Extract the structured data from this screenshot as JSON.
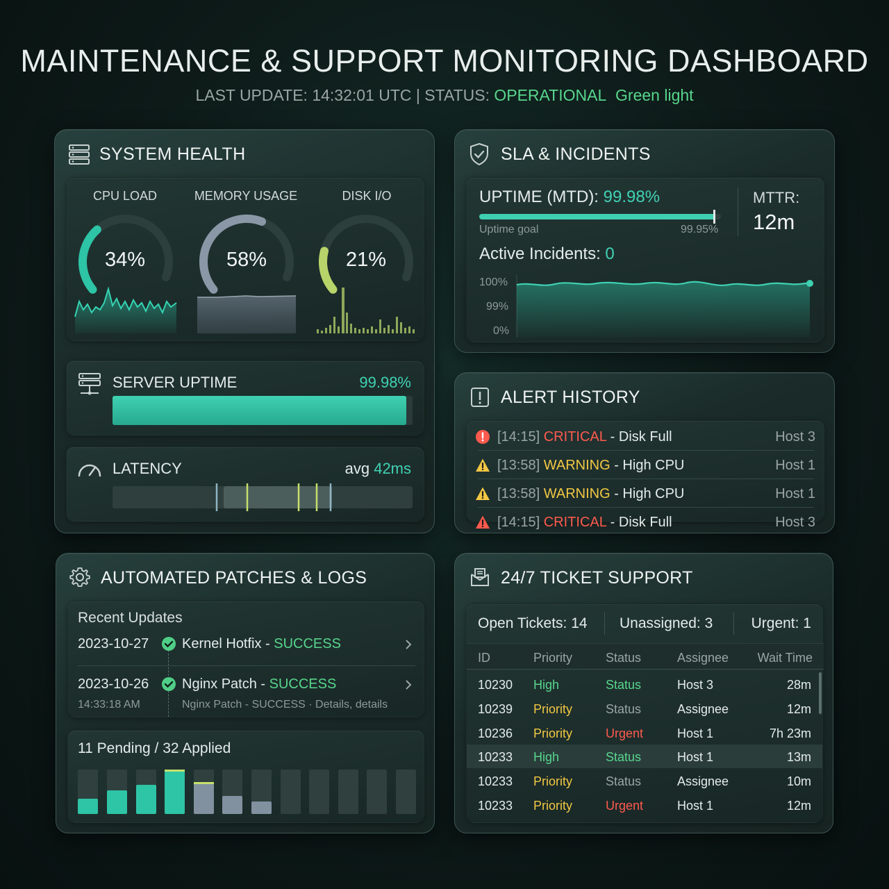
{
  "header": {
    "title": "MAINTENANCE & SUPPORT MONITORING DASHBOARD",
    "last_update_label": "LAST UPDATE: 14:32:01 UTC | STATUS: ",
    "status_value": "OPERATIONAL",
    "status_light": "Green light"
  },
  "system_health": {
    "title": "SYSTEM HEALTH",
    "icon": "server-icon",
    "gauges": [
      {
        "label": "CPU LOAD",
        "value": "34%",
        "fraction": 0.34,
        "color": "#2ec4a6"
      },
      {
        "label": "MEMORY USAGE",
        "value": "58%",
        "fraction": 0.58,
        "color": "#8a97a6"
      },
      {
        "label": "DISK I/O",
        "value": "21%",
        "fraction": 0.21,
        "color": "#b7d46a"
      }
    ],
    "server_uptime": {
      "label": "SERVER UPTIME",
      "value": "99.98%",
      "fraction": 0.9998
    },
    "latency": {
      "label": "LATENCY",
      "avg_label": "avg",
      "avg_value": "42ms"
    }
  },
  "sla": {
    "title": "SLA & INCIDENTS",
    "icon": "shield-check-icon",
    "uptime_label": "UPTIME (MTD): ",
    "uptime_value": "99.98%",
    "goal_label": "Uptime goal",
    "goal_value": "99.95%",
    "mttr_label": "MTTR:",
    "mttr_value": "12m",
    "incidents_label": "Active Incidents: ",
    "incidents_value": "0",
    "chart_ticks": [
      "100%",
      "99%",
      "0%"
    ]
  },
  "alerts": {
    "title": "ALERT HISTORY",
    "icon": "alert-box-icon",
    "items": [
      {
        "time": "[14:15]",
        "level": "CRITICAL",
        "msg": " - Disk Full",
        "host": "Host 3",
        "icon": "critical-circle-icon"
      },
      {
        "time": "[13:58]",
        "level": "WARNING",
        "msg": " - High CPU",
        "host": "Host 1",
        "icon": "warning-triangle-icon"
      },
      {
        "time": "[13:58]",
        "level": "WARNING",
        "msg": " - High CPU",
        "host": "Host 1",
        "icon": "warning-triangle-icon"
      },
      {
        "time": "[14:15]",
        "level": "CRITICAL",
        "msg": " - Disk Full",
        "host": "Host 3",
        "icon": "critical-triangle-icon"
      }
    ]
  },
  "patches": {
    "title": "AUTOMATED PATCHES & LOGS",
    "icon": "gear-icon",
    "recent_label": "Recent Updates",
    "updates": [
      {
        "date": "2023-10-27",
        "name": "Kernel Hotfix - ",
        "status": "SUCCESS"
      },
      {
        "date": "2023-10-26",
        "name": "Nginx Patch - ",
        "status": "SUCCESS",
        "time": "14:33:18 AM",
        "detail": "Nginx Patch - SUCCESS · Details, details"
      }
    ],
    "summary": "11 Pending / 32 Applied"
  },
  "tickets": {
    "title": "24/7 TICKET SUPPORT",
    "icon": "ticket-icon",
    "open": "Open Tickets: 14",
    "unassigned": "Unassigned: 3",
    "urgent": "Urgent: 1",
    "columns": [
      "ID",
      "Priority",
      "Status",
      "Assignee",
      "Wait Time"
    ],
    "rows": [
      {
        "id": "10230",
        "priority": "High",
        "status": "Status",
        "assignee": "Host 3",
        "wait": "28m",
        "pcolor": "#58d68d",
        "scolor": "#58d68d"
      },
      {
        "id": "10239",
        "priority": "Priority",
        "status": "Status",
        "assignee": "Assignee",
        "wait": "12m",
        "pcolor": "#f2c744",
        "scolor": "#9aa6a3"
      },
      {
        "id": "10236",
        "priority": "Priority",
        "status": "Urgent",
        "assignee": "Host 1",
        "wait": "7h 23m",
        "pcolor": "#f2c744",
        "scolor": "#ff5a4e"
      },
      {
        "id": "10233",
        "priority": "High",
        "status": "Status",
        "assignee": "Host 1",
        "wait": "13m",
        "pcolor": "#58d68d",
        "scolor": "#58d68d"
      },
      {
        "id": "10233",
        "priority": "Priority",
        "status": "Status",
        "assignee": "Assignee",
        "wait": "10m",
        "pcolor": "#f2c744",
        "scolor": "#9aa6a3"
      },
      {
        "id": "10233",
        "priority": "Priority",
        "status": "Urgent",
        "assignee": "Host 1",
        "wait": "12m",
        "pcolor": "#f2c744",
        "scolor": "#ff5a4e"
      }
    ]
  },
  "colors": {
    "accent": "#41d2b4",
    "ok": "#58d68d",
    "critical": "#ff5a4e",
    "warning": "#f2c744"
  }
}
